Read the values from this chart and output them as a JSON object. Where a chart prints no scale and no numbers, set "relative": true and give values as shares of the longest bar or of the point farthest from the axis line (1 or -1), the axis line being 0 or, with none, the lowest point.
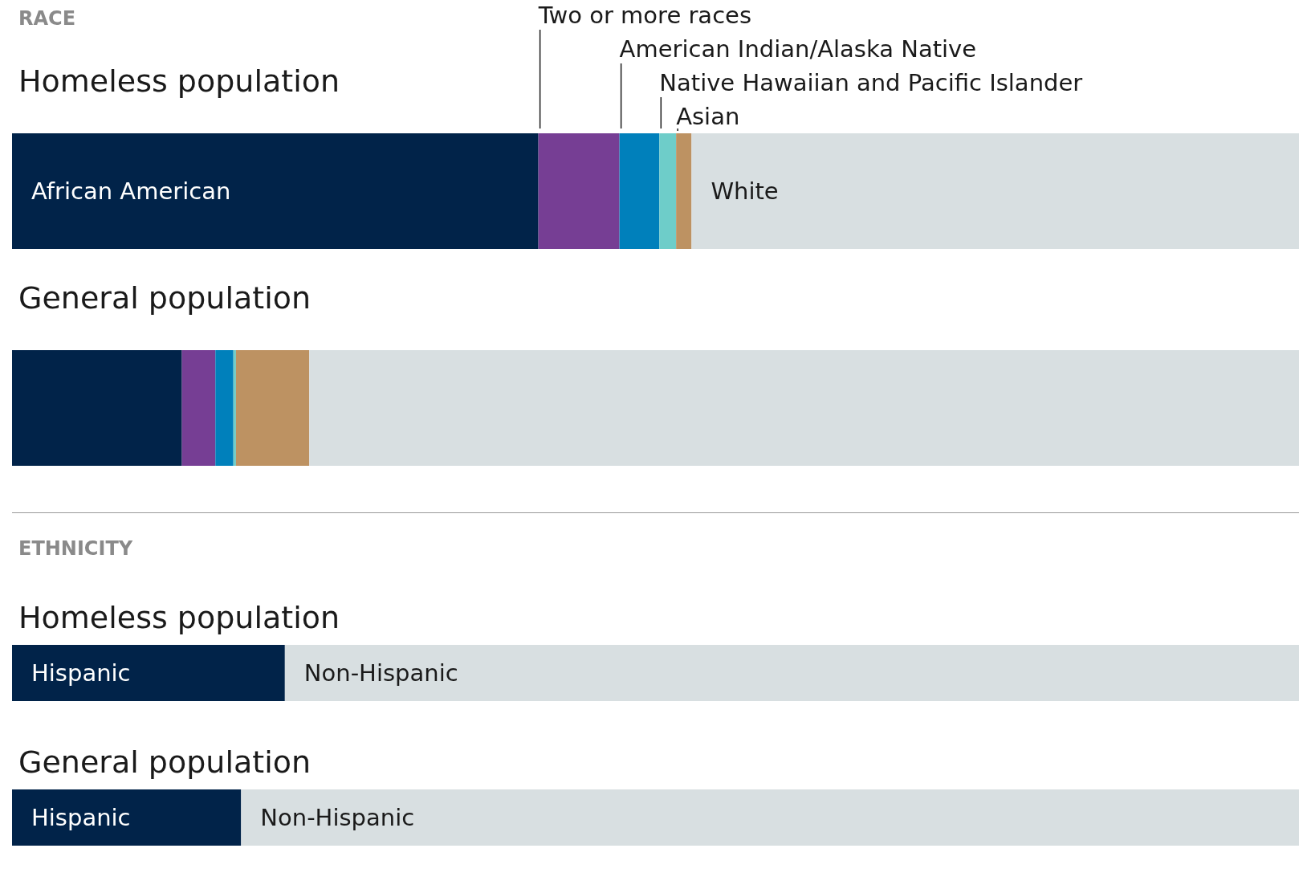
{
  "chart_data": [
    {
      "type": "bar",
      "title": "RACE",
      "orientation": "horizontal",
      "stacked": true,
      "relative": true,
      "categories": [
        "Homeless population",
        "General population"
      ],
      "series": [
        {
          "name": "African American",
          "color": "#012349",
          "values": [
            0.409,
            0.132
          ]
        },
        {
          "name": "Two or more races",
          "color": "#763e94",
          "values": [
            0.063,
            0.026
          ]
        },
        {
          "name": "American Indian/Alaska Native",
          "color": "#0080bb",
          "values": [
            0.031,
            0.014
          ]
        },
        {
          "name": "Native Hawaiian and Pacific Islander",
          "color": "#6ecdc9",
          "values": [
            0.013,
            0.002
          ]
        },
        {
          "name": "Asian",
          "color": "#bd9262",
          "values": [
            0.012,
            0.057
          ]
        },
        {
          "name": "White",
          "color": "#d8dfe1",
          "values": [
            0.472,
            0.769
          ]
        }
      ]
    },
    {
      "type": "bar",
      "title": "ETHNICITY",
      "orientation": "horizontal",
      "stacked": true,
      "relative": true,
      "categories": [
        "Homeless population",
        "General population"
      ],
      "series": [
        {
          "name": "Hispanic",
          "color": "#012349",
          "values": [
            0.212,
            0.178
          ]
        },
        {
          "name": "Non-Hispanic",
          "color": "#d8dfe1",
          "values": [
            0.788,
            0.822
          ]
        }
      ]
    }
  ]
}
